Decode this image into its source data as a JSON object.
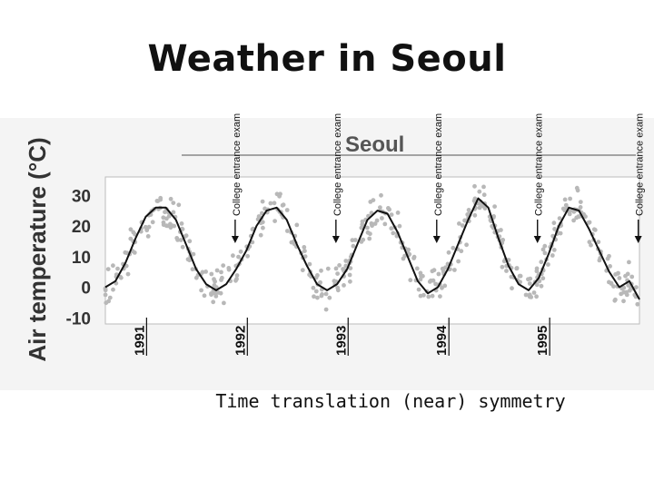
{
  "slide": {
    "title": "Weather in Seoul",
    "caption": "Time translation (near) symmetry"
  },
  "chart_data": {
    "type": "line",
    "title": "Seoul",
    "ylabel": "Air temperature (°C)",
    "ylim": [
      -12,
      36
    ],
    "yticks": [
      30,
      20,
      10,
      0,
      -10
    ],
    "xlim": [
      1990.6,
      1995.9
    ],
    "x_markers": [
      {
        "x": 1991,
        "label": "1991"
      },
      {
        "x": 1992,
        "label": "1992"
      },
      {
        "x": 1993,
        "label": "1993"
      },
      {
        "x": 1994,
        "label": "1994"
      },
      {
        "x": 1995,
        "label": "1995"
      }
    ],
    "annotations": [
      {
        "x": 1991.87,
        "label": "College entrance exam"
      },
      {
        "x": 1992.87,
        "label": "College entrance exam"
      },
      {
        "x": 1993.87,
        "label": "College entrance exam"
      },
      {
        "x": 1994.87,
        "label": "College entrance exam"
      },
      {
        "x": 1995.87,
        "label": "College entrance exam"
      }
    ],
    "series": [
      {
        "x": [
          1990.6,
          1990.7,
          1990.8,
          1990.9,
          1991.0,
          1991.1,
          1991.2,
          1991.3,
          1991.4,
          1991.5,
          1991.6,
          1991.7,
          1991.8,
          1991.9,
          1992.0,
          1992.1,
          1992.2,
          1992.3,
          1992.4,
          1992.5,
          1992.6,
          1992.7,
          1992.8,
          1992.9,
          1993.0,
          1993.1,
          1993.2,
          1993.3,
          1993.4,
          1993.5,
          1993.6,
          1993.7,
          1993.8,
          1993.9,
          1994.0,
          1994.1,
          1994.2,
          1994.3,
          1994.4,
          1994.5,
          1994.6,
          1994.7,
          1994.8,
          1994.9,
          1995.0,
          1995.1,
          1995.2,
          1995.3,
          1995.4,
          1995.5,
          1995.6,
          1995.7,
          1995.8,
          1995.9
        ],
        "values": [
          0,
          2,
          8,
          16,
          23,
          26,
          26,
          22,
          14,
          6,
          1,
          -1,
          1,
          6,
          12,
          20,
          25,
          26,
          22,
          14,
          7,
          1,
          -1,
          1,
          6,
          14,
          22,
          25,
          24,
          18,
          10,
          2,
          -2,
          0,
          6,
          14,
          22,
          29,
          26,
          16,
          7,
          1,
          -1,
          3,
          11,
          20,
          26,
          25,
          19,
          12,
          5,
          0,
          2,
          -4
        ]
      }
    ]
  }
}
